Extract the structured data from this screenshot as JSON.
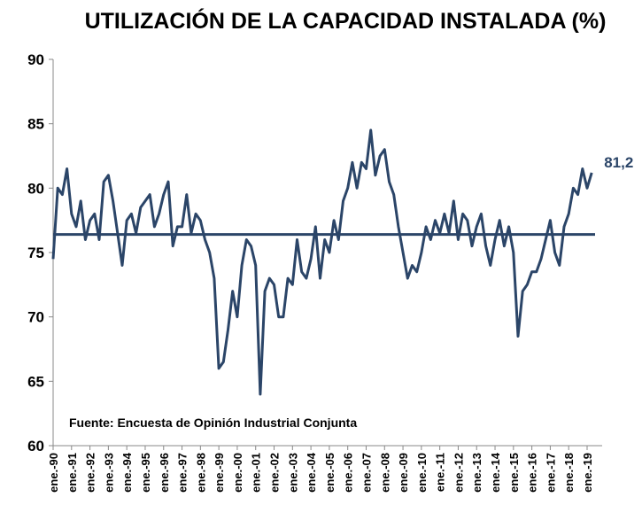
{
  "chart_data": {
    "type": "line",
    "title": "UTILIZACIÓN DE LA CAPACIDAD INSTALADA (%)",
    "source": "Fuente: Encuesta de Opinión Industrial Conjunta",
    "categories": [
      "ene.-90",
      null,
      null,
      null,
      "ene.-91",
      null,
      null,
      null,
      "ene.-92",
      null,
      null,
      null,
      "ene.-93",
      null,
      null,
      null,
      "ene.-94",
      null,
      null,
      null,
      "ene.-95",
      null,
      null,
      null,
      "ene.-96",
      null,
      null,
      null,
      "ene.-97",
      null,
      null,
      null,
      "ene.-98",
      null,
      null,
      null,
      "ene.-99",
      null,
      null,
      null,
      "ene.-00",
      null,
      null,
      null,
      "ene.-01",
      null,
      null,
      null,
      "ene.-02",
      null,
      null,
      null,
      "ene.-03",
      null,
      null,
      null,
      "ene.-04",
      null,
      null,
      null,
      "ene.-05",
      null,
      null,
      null,
      "ene.-06",
      null,
      null,
      null,
      "ene.-07",
      null,
      null,
      null,
      "ene.-08",
      null,
      null,
      null,
      "ene.-09",
      null,
      null,
      null,
      "ene.-10",
      null,
      null,
      null,
      "ene.-11",
      null,
      null,
      null,
      "ene.-12",
      null,
      null,
      null,
      "ene.-13",
      null,
      null,
      null,
      "ene.-14",
      null,
      null,
      null,
      "ene.-15",
      null,
      null,
      null,
      "ene.-16",
      null,
      null,
      null,
      "ene.-17",
      null,
      null,
      null,
      "ene.-18",
      null,
      null,
      null,
      "ene.-19",
      null
    ],
    "values": [
      74.5,
      80,
      79.5,
      81.5,
      78,
      77,
      79,
      76,
      77.5,
      78,
      76,
      80.5,
      81,
      79,
      76.5,
      74,
      77.5,
      78,
      76.5,
      78.5,
      79,
      79.5,
      77,
      78,
      79.5,
      80.5,
      75.5,
      77,
      77,
      79.5,
      76.5,
      78,
      77.5,
      76,
      75,
      73,
      66,
      66.5,
      69,
      72,
      70,
      74,
      76,
      75.5,
      74,
      64,
      72,
      73,
      72.5,
      70,
      70,
      73,
      72.5,
      76,
      73.5,
      73,
      74.5,
      77,
      73,
      76,
      75,
      77.5,
      76,
      79,
      80,
      82,
      80,
      82,
      81.5,
      84.5,
      81,
      82.5,
      83,
      80.5,
      79.5,
      77,
      75,
      73,
      74,
      73.5,
      75,
      77,
      76,
      77.5,
      76.5,
      78,
      76.5,
      79,
      76,
      78,
      77.5,
      75.5,
      77,
      78,
      75.5,
      74,
      76,
      77.5,
      75.5,
      77,
      75,
      68.5,
      72,
      72.5,
      73.5,
      73.5,
      74.5,
      76,
      77.5,
      75,
      74,
      77,
      78,
      80,
      79.5,
      81.5,
      80,
      81.2
    ],
    "value_labels": [
      null,
      null,
      null,
      null,
      null,
      null,
      null,
      null,
      null,
      null,
      null,
      null,
      null,
      null,
      null,
      null,
      null,
      null,
      null,
      null,
      null,
      null,
      null,
      null,
      null,
      null,
      null,
      null,
      null,
      null,
      null,
      null,
      null,
      null,
      null,
      null,
      null,
      null,
      null,
      null,
      null,
      null,
      null,
      null,
      null,
      null,
      null,
      null,
      null,
      null,
      null,
      null,
      null,
      null,
      null,
      null,
      null,
      null,
      null,
      null,
      null,
      null,
      null,
      null,
      null,
      null,
      null,
      null,
      null,
      null,
      null,
      null,
      null,
      null,
      null,
      null,
      null,
      null,
      null,
      null,
      null,
      null,
      null,
      null,
      null,
      null,
      null,
      null,
      null,
      null,
      null,
      null,
      null,
      null,
      null,
      null,
      null,
      null,
      null,
      null,
      null,
      null,
      null,
      null,
      null,
      null,
      null,
      null,
      null,
      null,
      null,
      null,
      null,
      null,
      null,
      null,
      null,
      "81,2"
    ],
    "average": 76.4,
    "color": "#2b4568",
    "ylim": [
      60,
      90
    ],
    "yticks": [
      60,
      65,
      70,
      75,
      80,
      85,
      90
    ]
  }
}
